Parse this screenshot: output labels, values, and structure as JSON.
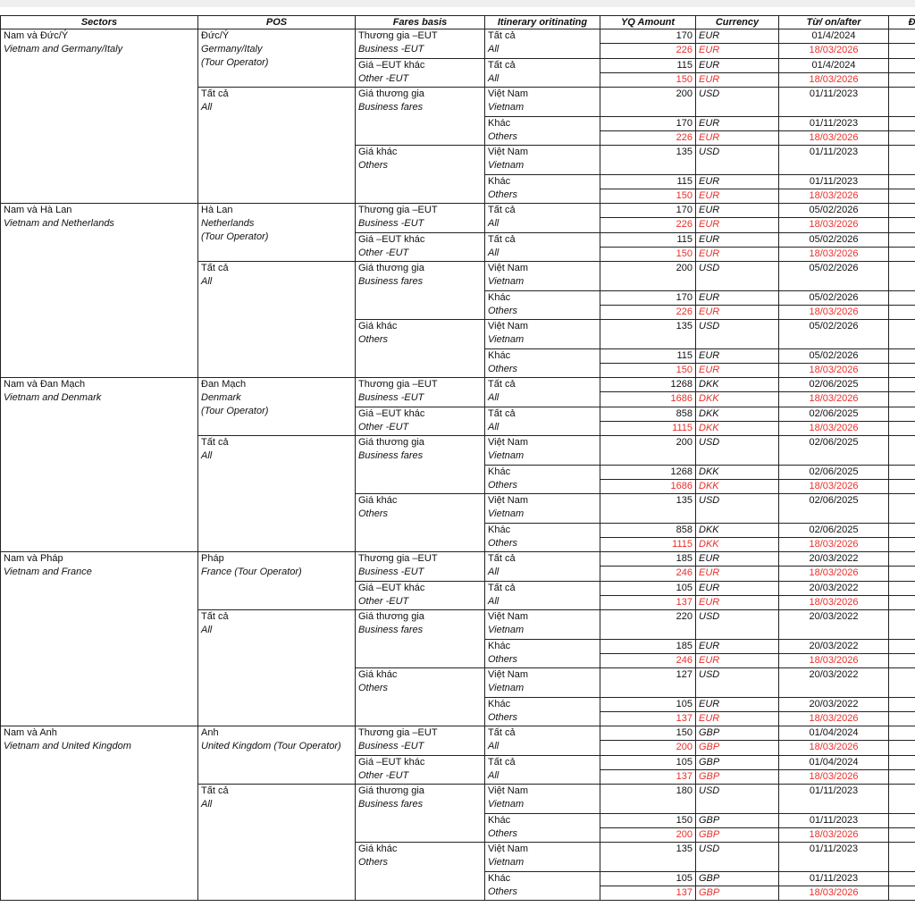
{
  "headers": [
    "Sectors",
    "POS",
    "Fares basis",
    "Itinerary oritinating",
    "YQ Amount",
    "Currency",
    "Từ/ on/after",
    "Đến"
  ],
  "colors": {
    "new_rate": "#e8302a",
    "text": "#111111"
  },
  "labels": {
    "business_eut": [
      "Thương gia –EUT",
      "Business -EUT"
    ],
    "other_eut": [
      "Giá –EUT khác",
      "Other -EUT"
    ],
    "business_fares": [
      "Giá thương gia",
      "Business fares"
    ],
    "other_fares": [
      "Giá khác",
      "Others"
    ],
    "all": [
      "Tất cả",
      "All"
    ],
    "vietnam": [
      "Việt Nam",
      "Vietnam"
    ],
    "others": [
      "Khác",
      "Others"
    ]
  },
  "blocks": [
    {
      "sector": [
        "Nam và Đức/Ý",
        "Vietnam and Germany/Italy"
      ],
      "pos": [
        "Đức/Ý",
        "Germany/Italy",
        "(Tour Operator)"
      ],
      "rows": [
        [
          "170",
          "EUR",
          "01/4/2024"
        ],
        [
          "226",
          "EUR",
          "18/03/2026"
        ],
        [
          "115",
          "EUR",
          "01/4/2024"
        ],
        [
          "150",
          "EUR",
          "18/03/2026"
        ],
        [
          "200",
          "USD",
          "01/11/2023"
        ],
        [
          "170",
          "EUR",
          "01/11/2023"
        ],
        [
          "226",
          "EUR",
          "18/03/2026"
        ],
        [
          "135",
          "USD",
          "01/11/2023"
        ],
        [
          "115",
          "EUR",
          "01/11/2023"
        ],
        [
          "150",
          "EUR",
          "18/03/2026"
        ]
      ]
    },
    {
      "sector": [
        "Nam và Hà Lan",
        "Vietnam and Netherlands"
      ],
      "pos": [
        "Hà Lan",
        "Netherlands",
        "(Tour Operator)"
      ],
      "rows": [
        [
          "170",
          "EUR",
          "05/02/2026"
        ],
        [
          "226",
          "EUR",
          "18/03/2026"
        ],
        [
          "115",
          "EUR",
          "05/02/2026"
        ],
        [
          "150",
          "EUR",
          "18/03/2026"
        ],
        [
          "200",
          "USD",
          "05/02/2026"
        ],
        [
          "170",
          "EUR",
          "05/02/2026"
        ],
        [
          "226",
          "EUR",
          "18/03/2026"
        ],
        [
          "135",
          "USD",
          "05/02/2026"
        ],
        [
          "115",
          "EUR",
          "05/02/2026"
        ],
        [
          "150",
          "EUR",
          "18/03/2026"
        ]
      ]
    },
    {
      "sector": [
        "Nam và Đan Mạch",
        "Vietnam and Denmark"
      ],
      "pos": [
        "Đan Mạch",
        "Denmark",
        "(Tour Operator)"
      ],
      "rows": [
        [
          "1268",
          "DKK",
          "02/06/2025"
        ],
        [
          "1686",
          "DKK",
          "18/03/2026"
        ],
        [
          "858",
          "DKK",
          "02/06/2025"
        ],
        [
          "1115",
          "DKK",
          "18/03/2026"
        ],
        [
          "200",
          "USD",
          "02/06/2025"
        ],
        [
          "1268",
          "DKK",
          "02/06/2025"
        ],
        [
          "1686",
          "DKK",
          "18/03/2026"
        ],
        [
          "135",
          "USD",
          "02/06/2025"
        ],
        [
          "858",
          "DKK",
          "02/06/2025"
        ],
        [
          "1115",
          "DKK",
          "18/03/2026"
        ]
      ]
    },
    {
      "sector": [
        "Nam và Pháp",
        "Vietnam and France"
      ],
      "pos": [
        "Pháp",
        "France (Tour Operator)"
      ],
      "rows": [
        [
          "185",
          "EUR",
          "20/03/2022"
        ],
        [
          "246",
          "EUR",
          "18/03/2026"
        ],
        [
          "105",
          "EUR",
          "20/03/2022"
        ],
        [
          "137",
          "EUR",
          "18/03/2026"
        ],
        [
          "220",
          "USD",
          "20/03/2022"
        ],
        [
          "185",
          "EUR",
          "20/03/2022"
        ],
        [
          "246",
          "EUR",
          "18/03/2026"
        ],
        [
          "127",
          "USD",
          "20/03/2022"
        ],
        [
          "105",
          "EUR",
          "20/03/2022"
        ],
        [
          "137",
          "EUR",
          "18/03/2026"
        ]
      ]
    },
    {
      "sector": [
        "Nam và Anh",
        "Vietnam and United Kingdom"
      ],
      "pos": [
        "Anh",
        "United Kingdom (Tour Operator)"
      ],
      "rows": [
        [
          "150",
          "GBP",
          "01/04/2024"
        ],
        [
          "200",
          "GBP",
          "18/03/2026"
        ],
        [
          "105",
          "GBP",
          "01/04/2024"
        ],
        [
          "137",
          "GBP",
          "18/03/2026"
        ],
        [
          "180",
          "USD",
          "01/11/2023"
        ],
        [
          "150",
          "GBP",
          "01/11/2023"
        ],
        [
          "200",
          "GBP",
          "18/03/2026"
        ],
        [
          "135",
          "USD",
          "01/11/2023"
        ],
        [
          "105",
          "GBP",
          "01/11/2023"
        ],
        [
          "137",
          "GBP",
          "18/03/2026"
        ]
      ]
    }
  ]
}
